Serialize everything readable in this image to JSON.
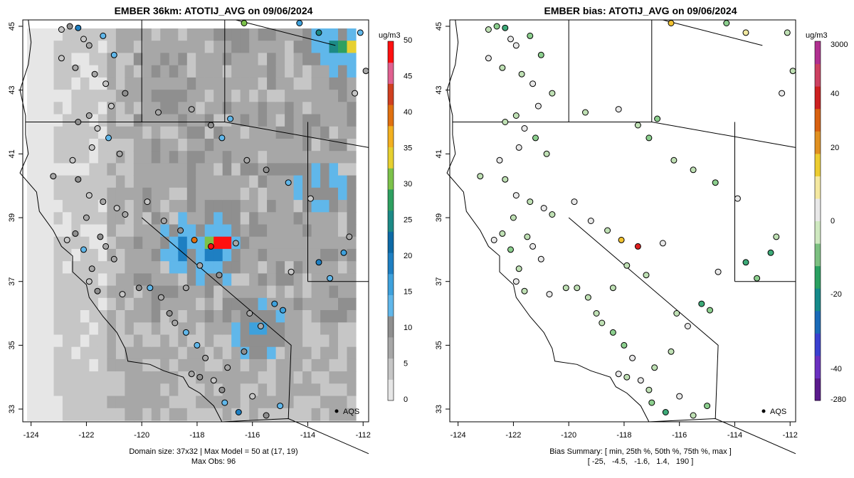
{
  "left": {
    "title": "EMBER 36km: ATOTIJ_AVG on 09/06/2024",
    "unit": "ug/m3",
    "caption_line1": "Domain size: 37x32 | Max Model = 50 at (17, 19)",
    "caption_line2": "Max Obs: 96",
    "colorbar_ticks": [
      "0",
      "5",
      "10",
      "15",
      "20",
      "25",
      "30",
      "35",
      "40",
      "45",
      "50"
    ],
    "colors": [
      "#e6e6e6",
      "#c6c6c6",
      "#a7a7a7",
      "#8f8f8f",
      "#60b7ea",
      "#3ea1dc",
      "#1e7fc2",
      "#0d6aa6",
      "#1c8a86",
      "#2ea060",
      "#7cc24a",
      "#e6d030",
      "#f2b020",
      "#e07010",
      "#d04020",
      "#e06090",
      "#ff1010"
    ]
  },
  "right": {
    "title": "EMBER bias: ATOTIJ_AVG on 09/06/2024",
    "unit": "ug/m3",
    "caption_line1": "Bias Summary: [ min, 25th %, 50th %, 75th %, max ]",
    "caption_line2": "[ -25,   -4.5,   -1.6,   1.4,   190 ]",
    "colorbar_ticks": [
      "3000",
      "40",
      "20",
      "0",
      "-20",
      "-40",
      "-280"
    ]
  },
  "map": {
    "x_ticks": [
      "-124",
      "-122",
      "-120",
      "-118",
      "-116",
      "-114",
      "-112"
    ],
    "y_ticks": [
      "45",
      "43",
      "41",
      "39",
      "37",
      "35",
      "33"
    ],
    "legend_label": "AQS",
    "extent": {
      "lon_min": -124.3,
      "lon_max": -111.8,
      "lat_min": 32.6,
      "lat_max": 45.2
    }
  },
  "chart_data": {
    "type": "map",
    "variable": "ATOTIJ_AVG",
    "date": "09/06/2024",
    "model_grid": "36km, 37x32",
    "max_model": 50,
    "max_model_cell": [
      17,
      19
    ],
    "max_obs": 96,
    "bias_summary": {
      "min": -25,
      "p25": -4.5,
      "median": -1.6,
      "p75": 1.4,
      "max": 190
    },
    "hotspots": [
      {
        "lon": -117.3,
        "lat": 38.3,
        "value": 50
      },
      {
        "lon": -117.7,
        "lat": 38.3,
        "value": 30
      },
      {
        "lon": -118.7,
        "lat": 38.3,
        "value": 20
      },
      {
        "lon": -117.5,
        "lat": 37.9,
        "value": 20
      },
      {
        "lon": -112.4,
        "lat": 44.6,
        "value": 35
      },
      {
        "lon": -113.1,
        "lat": 44.6,
        "value": 25
      },
      {
        "lon": -112.8,
        "lat": 44.6,
        "value": 28
      },
      {
        "lon": -113.7,
        "lat": 40.1,
        "value": 10
      },
      {
        "lon": -115.9,
        "lat": 35.6,
        "value": 15
      }
    ],
    "stations": [
      [
        -122.9,
        44.9,
        4,
        -2
      ],
      [
        -122.6,
        45.0,
        10,
        -6
      ],
      [
        -122.3,
        44.95,
        18,
        -12
      ],
      [
        -122.1,
        44.6,
        3,
        0
      ],
      [
        -121.4,
        44.7,
        14,
        -9
      ],
      [
        -121.9,
        44.4,
        6,
        -1
      ],
      [
        -121.0,
        44.1,
        12,
        -7
      ],
      [
        -122.9,
        44.0,
        2,
        -1
      ],
      [
        -122.4,
        43.7,
        7,
        -2
      ],
      [
        -121.7,
        43.5,
        5,
        -3
      ],
      [
        -121.3,
        43.2,
        3,
        -1
      ],
      [
        -120.6,
        42.9,
        8,
        -4
      ],
      [
        -121.1,
        42.5,
        4,
        0
      ],
      [
        -121.9,
        42.2,
        6,
        -2
      ],
      [
        -122.3,
        42.0,
        9,
        -5
      ],
      [
        -121.6,
        41.8,
        3,
        0
      ],
      [
        -121.2,
        41.5,
        12,
        -6
      ],
      [
        -120.8,
        41.0,
        6,
        -2
      ],
      [
        -121.8,
        41.2,
        4,
        -1
      ],
      [
        -122.5,
        40.8,
        2,
        2
      ],
      [
        -123.2,
        40.3,
        5,
        -3
      ],
      [
        -122.3,
        40.2,
        8,
        -4
      ],
      [
        -121.9,
        39.7,
        3,
        1
      ],
      [
        -121.4,
        39.5,
        6,
        -2
      ],
      [
        -120.9,
        39.3,
        4,
        0
      ],
      [
        -120.6,
        39.1,
        5,
        -2
      ],
      [
        -122.0,
        39.0,
        7,
        -3
      ],
      [
        -122.4,
        38.5,
        9,
        -4
      ],
      [
        -122.7,
        38.3,
        4,
        3
      ],
      [
        -122.1,
        38.0,
        11,
        -6
      ],
      [
        -121.5,
        38.4,
        8,
        -3
      ],
      [
        -121.3,
        38.1,
        6,
        -1
      ],
      [
        -121.0,
        37.7,
        5,
        1
      ],
      [
        -121.8,
        37.4,
        7,
        -2
      ],
      [
        -121.9,
        37.0,
        4,
        -1
      ],
      [
        -121.6,
        36.7,
        10,
        -4
      ],
      [
        -120.7,
        36.6,
        3,
        0
      ],
      [
        -120.1,
        36.8,
        8,
        -3
      ],
      [
        -119.7,
        36.8,
        12,
        -5
      ],
      [
        -119.3,
        36.5,
        6,
        -2
      ],
      [
        -119.0,
        36.0,
        9,
        -4
      ],
      [
        -118.8,
        35.7,
        7,
        -2
      ],
      [
        -118.4,
        35.4,
        14,
        -8
      ],
      [
        -118.0,
        35.0,
        11,
        -6
      ],
      [
        -117.7,
        34.6,
        6,
        -1
      ],
      [
        -118.2,
        34.1,
        5,
        1
      ],
      [
        -117.9,
        34.0,
        8,
        -3
      ],
      [
        -117.4,
        33.9,
        4,
        0
      ],
      [
        -117.1,
        33.6,
        10,
        -4
      ],
      [
        -117.0,
        33.2,
        13,
        -9
      ],
      [
        -116.5,
        32.9,
        20,
        -14
      ],
      [
        -116.0,
        33.4,
        3,
        0
      ],
      [
        -115.5,
        32.8,
        9,
        -3
      ],
      [
        -115.0,
        33.1,
        12,
        -6
      ],
      [
        -116.9,
        34.3,
        6,
        -2
      ],
      [
        -116.3,
        34.8,
        8,
        -3
      ],
      [
        -115.7,
        35.6,
        7,
        -1
      ],
      [
        -116.1,
        36.0,
        5,
        -2
      ],
      [
        -115.2,
        36.3,
        17,
        -11
      ],
      [
        -114.9,
        36.1,
        15,
        -9
      ],
      [
        -114.6,
        37.3,
        4,
        0
      ],
      [
        -113.6,
        37.6,
        19,
        -13
      ],
      [
        -113.2,
        37.1,
        11,
        -6
      ],
      [
        -112.7,
        37.9,
        16,
        -10
      ],
      [
        -112.5,
        38.4,
        6,
        -2
      ],
      [
        -119.4,
        42.3,
        7,
        -3
      ],
      [
        -118.2,
        42.4,
        5,
        -1
      ],
      [
        -117.5,
        41.9,
        9,
        -4
      ],
      [
        -116.8,
        42.1,
        13,
        -7
      ],
      [
        -117.1,
        41.5,
        12,
        -6
      ],
      [
        -116.2,
        40.8,
        6,
        -2
      ],
      [
        -115.5,
        40.5,
        9,
        -3
      ],
      [
        -114.7,
        40.1,
        11,
        -6
      ],
      [
        -113.9,
        39.6,
        4,
        0
      ],
      [
        -119.8,
        39.5,
        3,
        1
      ],
      [
        -119.2,
        38.9,
        5,
        -1
      ],
      [
        -118.6,
        38.6,
        8,
        -3
      ],
      [
        -118.1,
        38.3,
        40,
        25
      ],
      [
        -117.5,
        38.1,
        96,
        45
      ],
      [
        -116.6,
        38.2,
        6,
        0
      ],
      [
        -117.9,
        37.5,
        5,
        -2
      ],
      [
        -117.2,
        37.2,
        8,
        -4
      ],
      [
        -118.4,
        36.8,
        7,
        -3
      ],
      [
        -112.3,
        42.9,
        3,
        -1
      ],
      [
        -112.1,
        44.8,
        12,
        -5
      ],
      [
        -111.9,
        43.6,
        6,
        -2
      ],
      [
        -113.6,
        44.8,
        25,
        12
      ],
      [
        -114.3,
        45.1,
        17,
        -8
      ],
      [
        -116.3,
        45.1,
        30,
        20
      ]
    ]
  }
}
